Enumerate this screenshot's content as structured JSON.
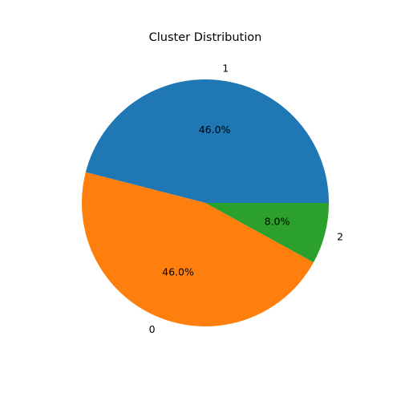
{
  "chart_data": {
    "type": "pie",
    "title": "Cluster Distribution",
    "slices": [
      {
        "label": "1",
        "value": 46.0,
        "percent_label": "46.0%",
        "color": "#1f77b4"
      },
      {
        "label": "0",
        "value": 46.0,
        "percent_label": "46.0%",
        "color": "#ff7f0e"
      },
      {
        "label": "2",
        "value": 8.0,
        "percent_label": "8.0%",
        "color": "#2ca02c"
      }
    ],
    "legend": "none"
  }
}
